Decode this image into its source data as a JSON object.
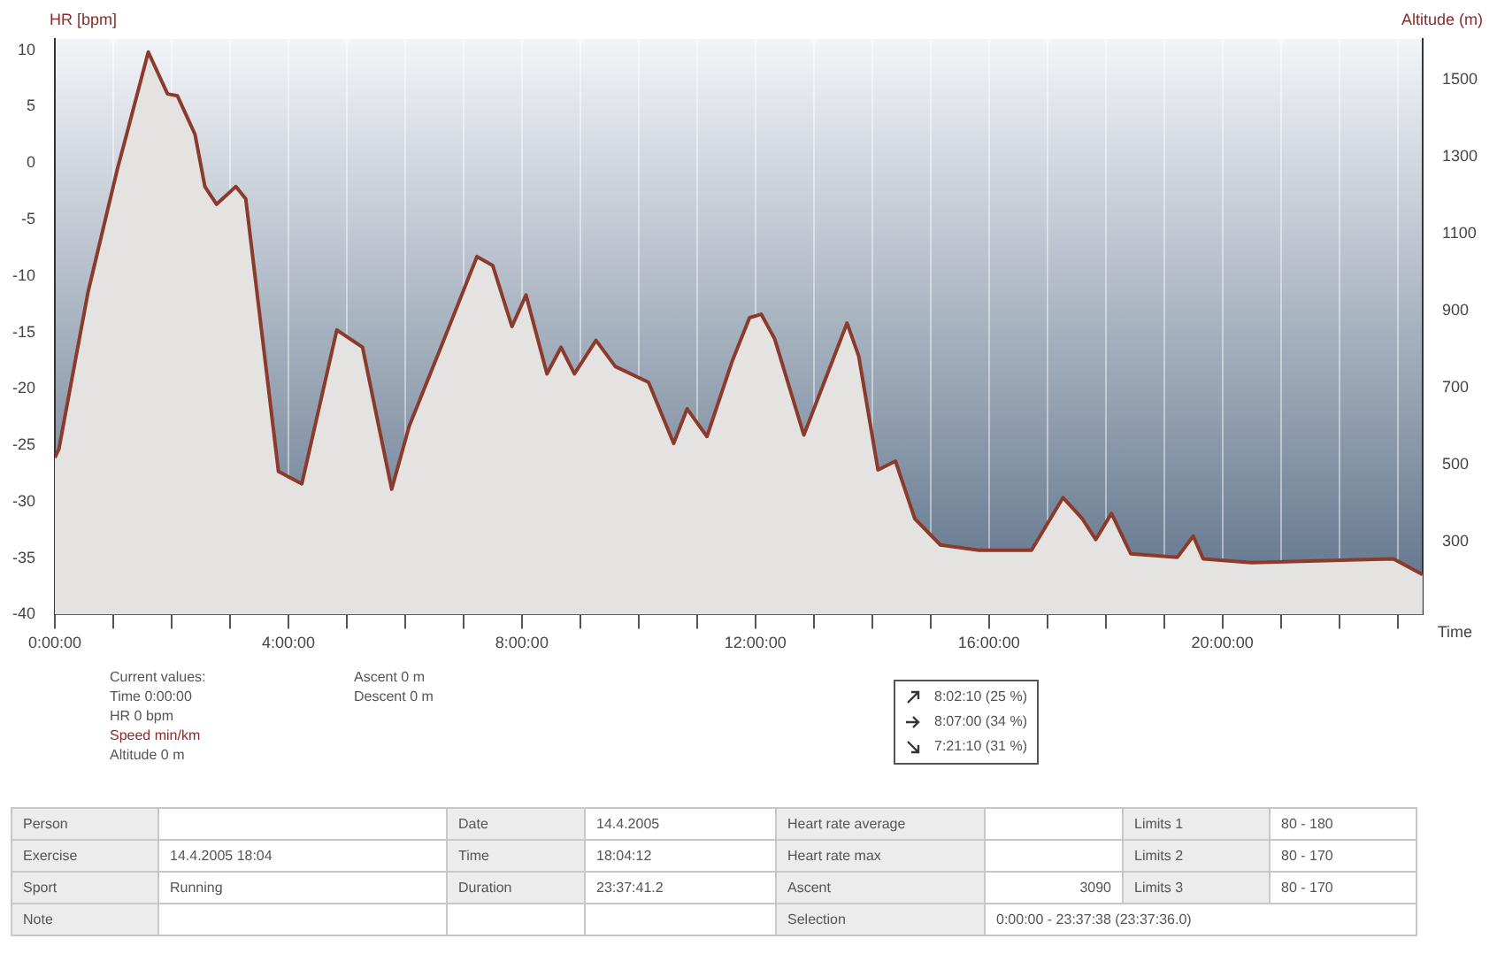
{
  "chart_data": {
    "type": "area",
    "ylabel": "HR [bpm]",
    "y2label": "Altitude (m)",
    "xlabel": "Time",
    "x": [
      0,
      0.07,
      0.57,
      1.07,
      1.23,
      1.6,
      1.93,
      2.1,
      2.4,
      2.57,
      2.77,
      3.1,
      3.27,
      3.83,
      4.23,
      4.83,
      5.27,
      5.77,
      6.07,
      6.6,
      7.23,
      7.5,
      7.83,
      8.07,
      8.43,
      8.67,
      8.9,
      9.27,
      9.6,
      10.17,
      10.6,
      10.83,
      11.17,
      11.6,
      11.9,
      12.1,
      12.33,
      12.83,
      13.57,
      13.77,
      14.1,
      14.4,
      14.73,
      15.17,
      15.83,
      16.73,
      17.27,
      17.6,
      17.83,
      18.1,
      18.43,
      19.23,
      19.5,
      19.67,
      20.5,
      22.93,
      23.43
    ],
    "series": [
      {
        "axis": "y2",
        "color": "#8a3b2b",
        "values": [
          518,
          541,
          950,
          1268,
          1359,
          1573,
          1464,
          1459,
          1359,
          1223,
          1177,
          1223,
          1191,
          482,
          450,
          850,
          805,
          436,
          600,
          800,
          1041,
          1018,
          859,
          941,
          736,
          805,
          736,
          823,
          755,
          714,
          555,
          645,
          573,
          768,
          882,
          891,
          827,
          577,
          868,
          782,
          486,
          509,
          359,
          291,
          277,
          277,
          414,
          359,
          305,
          373,
          268,
          259,
          314,
          255,
          245,
          255,
          214
        ]
      }
    ],
    "xlim": [
      0,
      23.43
    ],
    "xticks": [
      {
        "value": 0,
        "label": "0:00:00"
      },
      {
        "value": 1,
        "label": null
      },
      {
        "value": 2,
        "label": null
      },
      {
        "value": 3,
        "label": null
      },
      {
        "value": 4,
        "label": "4:00:00"
      },
      {
        "value": 5,
        "label": null
      },
      {
        "value": 6,
        "label": null
      },
      {
        "value": 7,
        "label": null
      },
      {
        "value": 8,
        "label": "8:00:00"
      },
      {
        "value": 9,
        "label": null
      },
      {
        "value": 10,
        "label": null
      },
      {
        "value": 11,
        "label": null
      },
      {
        "value": 12,
        "label": "12:00:00"
      },
      {
        "value": 13,
        "label": null
      },
      {
        "value": 14,
        "label": null
      },
      {
        "value": 15,
        "label": null
      },
      {
        "value": 16,
        "label": "16:00:00"
      },
      {
        "value": 17,
        "label": null
      },
      {
        "value": 18,
        "label": null
      },
      {
        "value": 19,
        "label": null
      },
      {
        "value": 20,
        "label": "20:00:00"
      },
      {
        "value": 21,
        "label": null
      },
      {
        "value": 22,
        "label": null
      },
      {
        "value": 23,
        "label": null
      }
    ],
    "ylim": [
      -40,
      11
    ],
    "yticks": [
      -40,
      -35,
      -30,
      -25,
      -20,
      -15,
      -10,
      -5,
      0,
      5,
      10
    ],
    "y2lim": [
      110,
      1607
    ],
    "y2ticks": [
      300,
      500,
      700,
      900,
      1100,
      1300,
      1500
    ],
    "grid": "x",
    "annotations": [
      "Current values:",
      "Time 0:00:00",
      "HR 0 bpm",
      "Speed min/km",
      "Altitude 0 m",
      "Ascent 0 m",
      "Descent 0 m",
      "8:02:10 (25 %)",
      "8:07:00 (34 %)",
      "7:21:10 (31 %)",
      "Person",
      "Date",
      "14.4.2005",
      "Heart rate average",
      "Limits 1",
      "80 - 180",
      "Exercise",
      "14.4.2005 18:04",
      "Time",
      "18:04:12",
      "Heart rate max",
      "Limits 2",
      "80 - 170",
      "Sport",
      "Running",
      "Duration",
      "23:37:41.2",
      "Ascent",
      "3090",
      "Limits 3",
      "80 - 170",
      "Note",
      "Selection",
      "0:00:00 - 23:37:38 (23:37:36.0)"
    ]
  }
}
